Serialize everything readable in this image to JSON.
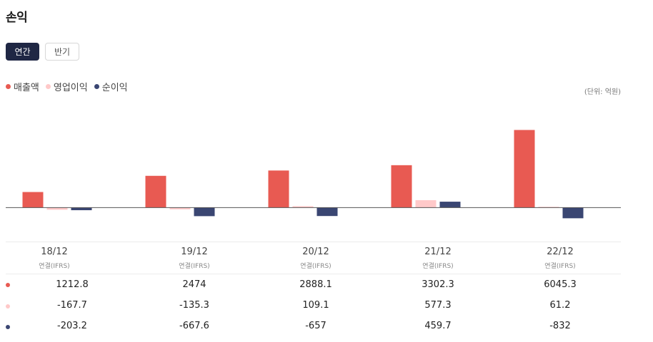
{
  "page": {
    "title": "손익"
  },
  "tabs": [
    {
      "label": "연간",
      "active": true
    },
    {
      "label": "반기",
      "active": false
    }
  ],
  "legend": [
    {
      "label": "매출액",
      "color": "#e85a52"
    },
    {
      "label": "영업이익",
      "color": "#ffc9c9"
    },
    {
      "label": "순이익",
      "color": "#3a4672"
    }
  ],
  "unit_label": "(단위: 억원)",
  "columns": [
    {
      "period": "18/12",
      "basis": "연결(IFRS)"
    },
    {
      "period": "19/12",
      "basis": "연결(IFRS)"
    },
    {
      "period": "20/12",
      "basis": "연결(IFRS)"
    },
    {
      "period": "21/12",
      "basis": "연결(IFRS)"
    },
    {
      "period": "22/12",
      "basis": "연결(IFRS)"
    }
  ],
  "rows": [
    {
      "values": [
        "1212.8",
        "2474",
        "2888.1",
        "3302.3",
        "6045.3"
      ]
    },
    {
      "values": [
        "-167.7",
        "-135.3",
        "109.1",
        "577.3",
        "61.2"
      ]
    },
    {
      "values": [
        "-203.2",
        "-667.6",
        "-657",
        "459.7",
        "-832"
      ]
    }
  ],
  "chart_data": {
    "type": "bar",
    "categories": [
      "18/12",
      "19/12",
      "20/12",
      "21/12",
      "22/12"
    ],
    "series": [
      {
        "name": "매출액",
        "color": "#e85a52",
        "values": [
          1212.8,
          2474,
          2888.1,
          3302.3,
          6045.3
        ]
      },
      {
        "name": "영업이익",
        "color": "#ffc9c9",
        "values": [
          -167.7,
          -135.3,
          109.1,
          577.3,
          61.2
        ]
      },
      {
        "name": "순이익",
        "color": "#3a4672",
        "values": [
          -203.2,
          -667.6,
          -657,
          459.7,
          -832
        ]
      }
    ],
    "ylim": [
      -2700,
      8400
    ],
    "grid": false,
    "legend_position": "top-left"
  }
}
